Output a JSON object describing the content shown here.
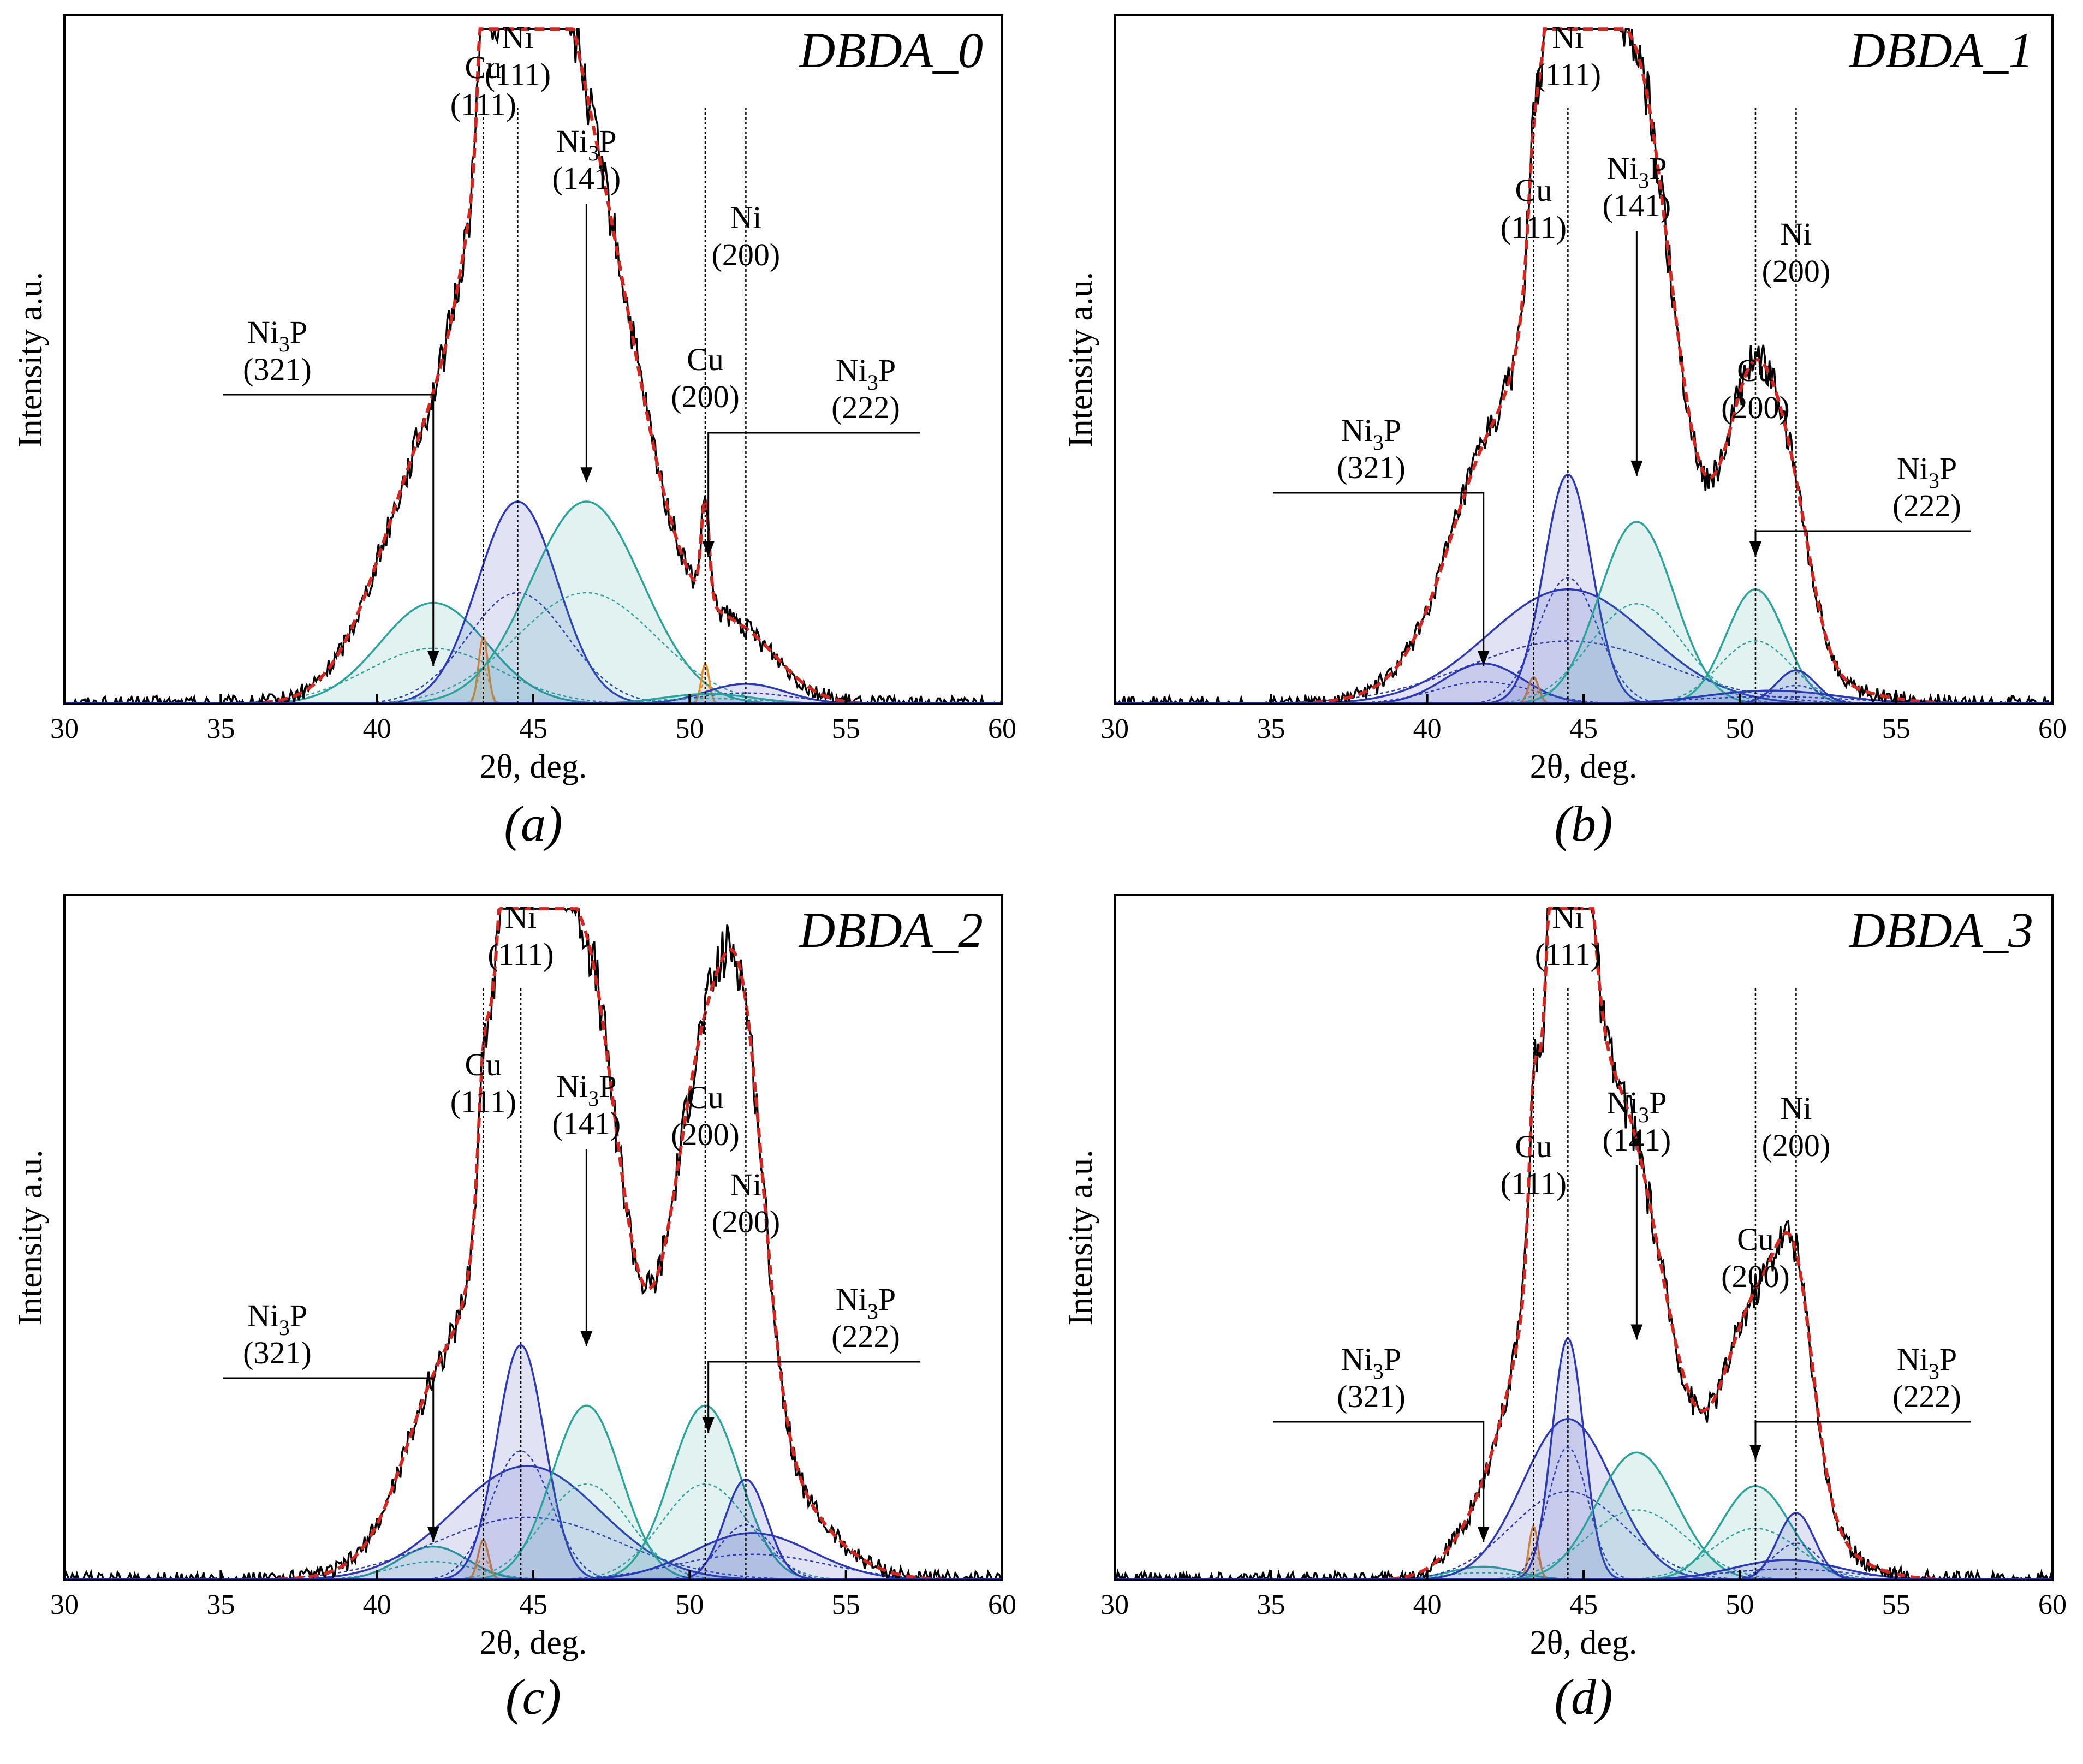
{
  "figure": {
    "x_axis_label": "2θ, deg.",
    "y_axis_label": "Intensity a.u."
  },
  "chart_data": [
    {
      "type": "line",
      "panel": "(a)",
      "title": "DBDA_0",
      "xlabel": "2θ, deg.",
      "ylabel": "Intensity a.u.",
      "xlim": [
        30,
        60
      ],
      "ylim": [
        0,
        1.0
      ],
      "xticks": [
        30,
        35,
        40,
        45,
        50,
        55,
        60
      ],
      "components": [
        {
          "phase": "Ni3P (321)",
          "center": 41.8,
          "fwhm": 4.0,
          "height": 0.15,
          "color": "#2aa39a"
        },
        {
          "phase": "Cu (111)",
          "center": 43.4,
          "fwhm": 0.35,
          "height": 0.1,
          "color": "#e8902b"
        },
        {
          "phase": "Ni (111)",
          "center": 44.5,
          "fwhm": 3.0,
          "height": 0.3,
          "color": "#2b39b8"
        },
        {
          "phase": "Ni3P (141)",
          "center": 46.7,
          "fwhm": 4.2,
          "height": 0.3,
          "color": "#2aa39a"
        },
        {
          "phase": "Cu (200)",
          "center": 50.5,
          "fwhm": 0.3,
          "height": 0.06,
          "color": "#e8902b"
        },
        {
          "phase": "Ni (200)",
          "center": 51.8,
          "fwhm": 3.0,
          "height": 0.03,
          "color": "#2b39b8"
        },
        {
          "phase": "Ni3P (222)",
          "center": 50.6,
          "fwhm": 3.5,
          "height": 0.015,
          "color": "#2aa39a"
        }
      ],
      "reference_lines": [
        43.4,
        44.5,
        50.5,
        51.8
      ],
      "peak_labels": [
        {
          "base": "Cu",
          "sub": "",
          "suffix": "",
          "index": "(111)",
          "x_deg": 43.4
        },
        {
          "base": "Ni",
          "sub": "",
          "suffix": "",
          "index": "(111)",
          "x_deg": 44.5
        },
        {
          "base": "Ni",
          "sub": "3",
          "suffix": "P",
          "index": "(141)",
          "x_deg": 46.7
        },
        {
          "base": "Ni",
          "sub": "",
          "suffix": "",
          "index": "(200)",
          "x_deg": 51.8
        },
        {
          "base": "Cu",
          "sub": "",
          "suffix": "",
          "index": "(200)",
          "x_deg": 50.5
        },
        {
          "base": "Ni",
          "sub": "3",
          "suffix": "P",
          "index": "(321)",
          "x_deg": 41.8
        },
        {
          "base": "Ni",
          "sub": "3",
          "suffix": "P",
          "index": "(222)",
          "x_deg": 50.6
        }
      ]
    },
    {
      "type": "line",
      "panel": "(b)",
      "title": "DBDA_1",
      "xlabel": "2θ, deg.",
      "ylabel": "Intensity a.u.",
      "xlim": [
        30,
        60
      ],
      "ylim": [
        0,
        1.0
      ],
      "xticks": [
        30,
        35,
        40,
        45,
        50,
        55,
        60
      ],
      "components": [
        {
          "phase": "Ni3P (321)",
          "center": 41.8,
          "fwhm": 3.0,
          "height": 0.06,
          "color": "#2b39b8"
        },
        {
          "phase": "Cu (111)",
          "center": 43.4,
          "fwhm": 0.4,
          "height": 0.04,
          "color": "#e8902b"
        },
        {
          "phase": "Ni (111)",
          "center": 44.5,
          "fwhm": 1.8,
          "height": 0.34,
          "color": "#2b39b8"
        },
        {
          "phase": "Ni (111) broad",
          "center": 44.5,
          "fwhm": 6.0,
          "height": 0.17,
          "color": "#2b39b8"
        },
        {
          "phase": "Ni3P (141)",
          "center": 46.7,
          "fwhm": 2.8,
          "height": 0.27,
          "color": "#2aa39a"
        },
        {
          "phase": "Cu (200)",
          "center": 50.5,
          "fwhm": 2.2,
          "height": 0.17,
          "color": "#2aa39a"
        },
        {
          "phase": "Ni (200)",
          "center": 51.8,
          "fwhm": 1.5,
          "height": 0.05,
          "color": "#2b39b8"
        },
        {
          "phase": "Ni3P (222)",
          "center": 51.0,
          "fwhm": 5.0,
          "height": 0.02,
          "color": "#2b39b8"
        }
      ],
      "reference_lines": [
        43.4,
        44.5,
        50.5,
        51.8
      ],
      "peak_labels": [
        {
          "base": "Ni",
          "sub": "",
          "suffix": "",
          "index": "(111)",
          "x_deg": 44.5
        },
        {
          "base": "Cu",
          "sub": "",
          "suffix": "",
          "index": "(111)",
          "x_deg": 43.4
        },
        {
          "base": "Ni",
          "sub": "3",
          "suffix": "P",
          "index": "(141)",
          "x_deg": 46.7
        },
        {
          "base": "Ni",
          "sub": "",
          "suffix": "",
          "index": "(200)",
          "x_deg": 51.8
        },
        {
          "base": "Cu",
          "sub": "",
          "suffix": "",
          "index": "(200)",
          "x_deg": 50.5
        },
        {
          "base": "Ni",
          "sub": "3",
          "suffix": "P",
          "index": "(321)",
          "x_deg": 41.8
        },
        {
          "base": "Ni",
          "sub": "3",
          "suffix": "P",
          "index": "(222)",
          "x_deg": 50.5
        }
      ]
    },
    {
      "type": "line",
      "panel": "(c)",
      "title": "DBDA_2",
      "xlabel": "2θ, deg.",
      "ylabel": "Intensity a.u.",
      "xlim": [
        30,
        60
      ],
      "ylim": [
        0,
        1.0
      ],
      "xticks": [
        30,
        35,
        40,
        45,
        50,
        55,
        60
      ],
      "components": [
        {
          "phase": "Ni3P (321)",
          "center": 41.8,
          "fwhm": 2.6,
          "height": 0.05,
          "color": "#2aa39a"
        },
        {
          "phase": "Cu (111)",
          "center": 43.4,
          "fwhm": 0.4,
          "height": 0.06,
          "color": "#e8902b"
        },
        {
          "phase": "Ni (111)",
          "center": 44.6,
          "fwhm": 1.8,
          "height": 0.35,
          "color": "#2b39b8"
        },
        {
          "phase": "Ni (111) broad",
          "center": 44.8,
          "fwhm": 5.5,
          "height": 0.17,
          "color": "#2b39b8"
        },
        {
          "phase": "Ni3P (141)",
          "center": 46.7,
          "fwhm": 2.6,
          "height": 0.26,
          "color": "#2aa39a"
        },
        {
          "phase": "Cu (200)",
          "center": 50.5,
          "fwhm": 2.6,
          "height": 0.26,
          "color": "#2aa39a"
        },
        {
          "phase": "Ni (200)",
          "center": 51.8,
          "fwhm": 1.6,
          "height": 0.15,
          "color": "#2b39b8"
        },
        {
          "phase": "Ni3P (222)",
          "center": 52.0,
          "fwhm": 4.5,
          "height": 0.07,
          "color": "#2b39b8"
        }
      ],
      "reference_lines": [
        43.4,
        44.6,
        50.5,
        51.8
      ],
      "peak_labels": [
        {
          "base": "Ni",
          "sub": "",
          "suffix": "",
          "index": "(111)",
          "x_deg": 44.6
        },
        {
          "base": "Cu",
          "sub": "",
          "suffix": "",
          "index": "(111)",
          "x_deg": 43.4
        },
        {
          "base": "Ni",
          "sub": "3",
          "suffix": "P",
          "index": "(141)",
          "x_deg": 46.7
        },
        {
          "base": "Cu",
          "sub": "",
          "suffix": "",
          "index": "(200)",
          "x_deg": 50.5
        },
        {
          "base": "Ni",
          "sub": "",
          "suffix": "",
          "index": "(200)",
          "x_deg": 51.8
        },
        {
          "base": "Ni",
          "sub": "3",
          "suffix": "P",
          "index": "(321)",
          "x_deg": 41.8
        },
        {
          "base": "Ni",
          "sub": "3",
          "suffix": "P",
          "index": "(222)",
          "x_deg": 50.6
        }
      ]
    },
    {
      "type": "line",
      "panel": "(d)",
      "title": "DBDA_3",
      "xlabel": "2θ, deg.",
      "ylabel": "Intensity a.u.",
      "xlim": [
        30,
        60
      ],
      "ylim": [
        0,
        1.0
      ],
      "xticks": [
        30,
        35,
        40,
        45,
        50,
        55,
        60
      ],
      "components": [
        {
          "phase": "Ni3P (321)",
          "center": 41.8,
          "fwhm": 2.6,
          "height": 0.02,
          "color": "#2aa39a"
        },
        {
          "phase": "Cu (111)",
          "center": 43.4,
          "fwhm": 0.35,
          "height": 0.08,
          "color": "#e8902b"
        },
        {
          "phase": "Ni (111)",
          "center": 44.5,
          "fwhm": 1.2,
          "height": 0.36,
          "color": "#2b39b8"
        },
        {
          "phase": "Ni (111) broad",
          "center": 44.5,
          "fwhm": 3.4,
          "height": 0.24,
          "color": "#2b39b8"
        },
        {
          "phase": "Ni3P (141)",
          "center": 46.7,
          "fwhm": 3.0,
          "height": 0.19,
          "color": "#2aa39a"
        },
        {
          "phase": "Cu (200)",
          "center": 50.5,
          "fwhm": 2.6,
          "height": 0.14,
          "color": "#2aa39a"
        },
        {
          "phase": "Ni (200)",
          "center": 51.8,
          "fwhm": 1.4,
          "height": 0.1,
          "color": "#2b39b8"
        },
        {
          "phase": "Ni3P (222)",
          "center": 51.5,
          "fwhm": 4.0,
          "height": 0.03,
          "color": "#2b39b8"
        }
      ],
      "reference_lines": [
        43.4,
        44.5,
        50.5,
        51.8
      ],
      "peak_labels": [
        {
          "base": "Ni",
          "sub": "",
          "suffix": "",
          "index": "(111)",
          "x_deg": 44.5
        },
        {
          "base": "Cu",
          "sub": "",
          "suffix": "",
          "index": "(111)",
          "x_deg": 43.4
        },
        {
          "base": "Ni",
          "sub": "3",
          "suffix": "P",
          "index": "(141)",
          "x_deg": 46.7
        },
        {
          "base": "Ni",
          "sub": "",
          "suffix": "",
          "index": "(200)",
          "x_deg": 51.8
        },
        {
          "base": "Cu",
          "sub": "",
          "suffix": "",
          "index": "(200)",
          "x_deg": 50.5
        },
        {
          "base": "Ni",
          "sub": "3",
          "suffix": "P",
          "index": "(321)",
          "x_deg": 41.8
        },
        {
          "base": "Ni",
          "sub": "3",
          "suffix": "P",
          "index": "(222)",
          "x_deg": 50.5
        }
      ]
    }
  ]
}
